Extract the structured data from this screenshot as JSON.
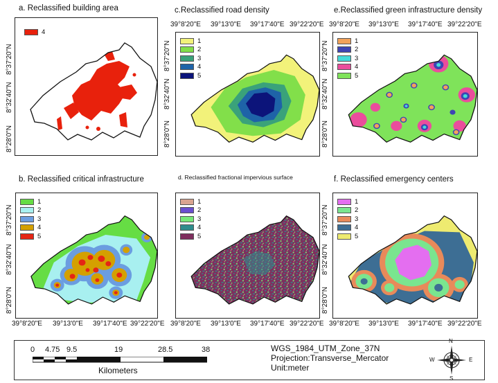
{
  "panels": {
    "a": {
      "title": "a. Reclassified building area",
      "legend": [
        {
          "label": "4",
          "color": "#e8210c"
        }
      ]
    },
    "b": {
      "title": "b. Reclassified critical infrastructure",
      "legend": [
        {
          "label": "1",
          "color": "#66dd44"
        },
        {
          "label": "2",
          "color": "#a8f0f0"
        },
        {
          "label": "3",
          "color": "#6b9de0"
        },
        {
          "label": "4",
          "color": "#d4a000"
        },
        {
          "label": "5",
          "color": "#e52515"
        }
      ]
    },
    "c": {
      "title": "c.Reclassified  road density",
      "legend": [
        {
          "label": "1",
          "color": "#f2f27a"
        },
        {
          "label": "2",
          "color": "#82df4a"
        },
        {
          "label": "3",
          "color": "#3aa27a"
        },
        {
          "label": "4",
          "color": "#1e63a8"
        },
        {
          "label": "5",
          "color": "#0c147a"
        }
      ]
    },
    "d": {
      "title": "d. Reclassified fractional impervious surface",
      "legend": [
        {
          "label": "1",
          "color": "#d9a490"
        },
        {
          "label": "2",
          "color": "#6a4fcf"
        },
        {
          "label": "3",
          "color": "#78e878"
        },
        {
          "label": "4",
          "color": "#2f8c8c"
        },
        {
          "label": "5",
          "color": "#7e2f5e"
        }
      ]
    },
    "e": {
      "title": "e.Reclassified  green infrastructure density",
      "legend": [
        {
          "label": "1",
          "color": "#f2a25a"
        },
        {
          "label": "2",
          "color": "#3e44b4"
        },
        {
          "label": "3",
          "color": "#44dada"
        },
        {
          "label": "4",
          "color": "#ea4d9c"
        },
        {
          "label": "5",
          "color": "#7fe35a"
        }
      ]
    },
    "f": {
      "title": "f. Reclassified emergency centers",
      "legend": [
        {
          "label": "1",
          "color": "#e46ef0"
        },
        {
          "label": "2",
          "color": "#7ae58f"
        },
        {
          "label": "3",
          "color": "#e88a5a"
        },
        {
          "label": "4",
          "color": "#3d6e94"
        },
        {
          "label": "5",
          "color": "#eeeb70"
        }
      ]
    }
  },
  "grid": {
    "lon_labels": [
      "39°8'20\"E",
      "39°13'0\"E",
      "39°17'40\"E",
      "39°22'20\"E"
    ],
    "lat_labels": [
      "8°37'20\"N",
      "8°32'40\"N",
      "8°28'0\"N"
    ]
  },
  "scalebar": {
    "ticks": [
      "0",
      "4.75",
      "9.5",
      "19",
      "28.5",
      "38"
    ],
    "unit": "Kilometers"
  },
  "projection": {
    "line1": "WGS_1984_UTM_Zone_37N",
    "line2": "Projection:Transverse_Mercator",
    "line3": "Unit:meter"
  },
  "north_arrow": {
    "n": "N",
    "s": "S",
    "e": "E",
    "w": "W",
    "icon": "compass-rose-icon"
  }
}
